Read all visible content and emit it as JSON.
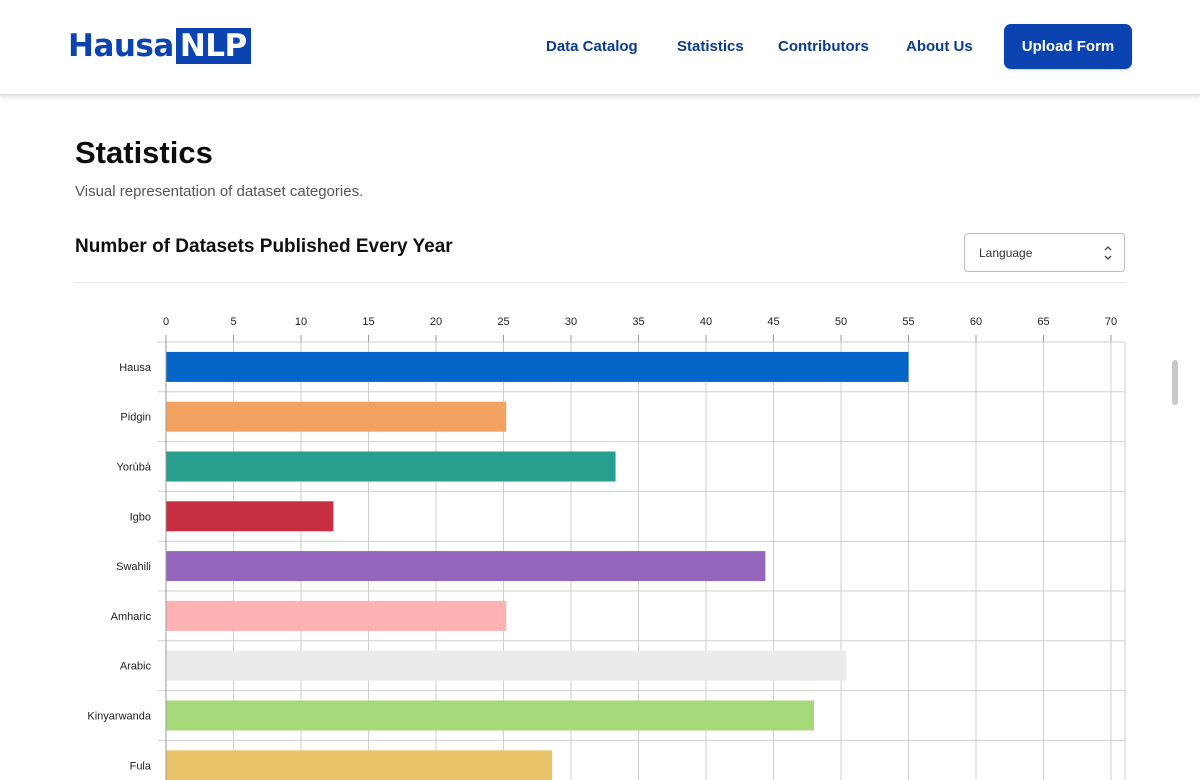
{
  "header": {
    "logo": {
      "part1": "Hausa",
      "part2": "NLP"
    },
    "nav": [
      "Data Catalog",
      "Statistics",
      "Contributors",
      "About Us"
    ],
    "upload_label": "Upload Form"
  },
  "page": {
    "title": "Statistics",
    "subtitle": "Visual representation of dataset categories."
  },
  "chart_section": {
    "title": "Number of Datasets Published Every Year",
    "select_value": "Language"
  },
  "chart_data": {
    "type": "bar",
    "orientation": "horizontal",
    "categories": [
      "Hausa",
      "Pidgin",
      "Yorùbá",
      "Igbo",
      "Swahili",
      "Amharic",
      "Arabic",
      "Kinyarwanda",
      "Fula"
    ],
    "values": [
      55,
      25.2,
      33.3,
      12.4,
      44.4,
      25.2,
      50.4,
      48,
      28.6
    ],
    "colors": [
      "#0566c9",
      "#f3a262",
      "#279e8e",
      "#c82e42",
      "#9466bb",
      "#feb2b3",
      "#ebebeb",
      "#a5d979",
      "#e9c46a"
    ],
    "xticks": [
      0,
      5,
      10,
      15,
      20,
      25,
      30,
      35,
      40,
      45,
      50,
      55,
      60,
      65,
      70
    ],
    "xlim": [
      0,
      70
    ],
    "title": "",
    "xlabel": "",
    "ylabel": "",
    "grid": true,
    "xaxis_position": "top"
  }
}
